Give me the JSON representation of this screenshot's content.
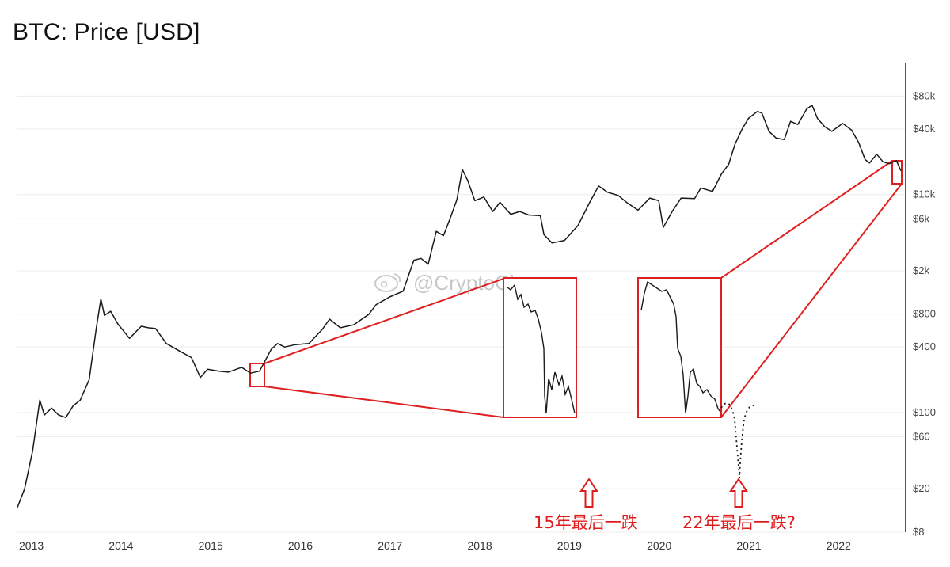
{
  "title": "BTC: Price [USD]",
  "watermark": "@CryptoChan",
  "chart_data": {
    "type": "line",
    "title": "BTC: Price [USD]",
    "y_scale": "log",
    "ylim": [
      8,
      160000
    ],
    "xlim": [
      2013.0,
      2022.85
    ],
    "grid": true,
    "y_ticks": [
      {
        "value": 80000,
        "label": "$80k"
      },
      {
        "value": 40000,
        "label": "$40k"
      },
      {
        "value": 10000,
        "label": "$10k"
      },
      {
        "value": 6000,
        "label": "$6k"
      },
      {
        "value": 2000,
        "label": "$2k"
      },
      {
        "value": 800,
        "label": "$800"
      },
      {
        "value": 400,
        "label": "$400"
      },
      {
        "value": 100,
        "label": "$100"
      },
      {
        "value": 60,
        "label": "$60"
      },
      {
        "value": 20,
        "label": "$20"
      },
      {
        "value": 8,
        "label": "$8"
      }
    ],
    "x_ticks": [
      "2013",
      "2014",
      "2015",
      "2016",
      "2017",
      "2018",
      "2019",
      "2020",
      "2021",
      "2022"
    ],
    "series": [
      {
        "color": "#1a1a1a",
        "points": [
          [
            2013.0,
            13.5
          ],
          [
            2013.08,
            20
          ],
          [
            2013.17,
            45
          ],
          [
            2013.25,
            130
          ],
          [
            2013.3,
            95
          ],
          [
            2013.38,
            110
          ],
          [
            2013.46,
            95
          ],
          [
            2013.54,
            90
          ],
          [
            2013.62,
            115
          ],
          [
            2013.7,
            130
          ],
          [
            2013.8,
            200
          ],
          [
            2013.88,
            600
          ],
          [
            2013.93,
            1100
          ],
          [
            2013.97,
            780
          ],
          [
            2014.04,
            850
          ],
          [
            2014.12,
            650
          ],
          [
            2014.25,
            480
          ],
          [
            2014.38,
            620
          ],
          [
            2014.46,
            600
          ],
          [
            2014.54,
            590
          ],
          [
            2014.66,
            430
          ],
          [
            2014.8,
            370
          ],
          [
            2014.94,
            320
          ],
          [
            2015.04,
            210
          ],
          [
            2015.12,
            250
          ],
          [
            2015.25,
            240
          ],
          [
            2015.35,
            235
          ],
          [
            2015.5,
            260
          ],
          [
            2015.6,
            230
          ],
          [
            2015.7,
            240
          ],
          [
            2015.83,
            380
          ],
          [
            2015.9,
            430
          ],
          [
            2015.98,
            400
          ],
          [
            2016.1,
            420
          ],
          [
            2016.25,
            430
          ],
          [
            2016.4,
            580
          ],
          [
            2016.48,
            720
          ],
          [
            2016.6,
            600
          ],
          [
            2016.75,
            640
          ],
          [
            2016.92,
            800
          ],
          [
            2017.0,
            980
          ],
          [
            2017.15,
            1150
          ],
          [
            2017.3,
            1300
          ],
          [
            2017.42,
            2500
          ],
          [
            2017.5,
            2600
          ],
          [
            2017.58,
            2300
          ],
          [
            2017.67,
            4600
          ],
          [
            2017.75,
            4200
          ],
          [
            2017.83,
            6200
          ],
          [
            2017.9,
            9000
          ],
          [
            2017.96,
            17000
          ],
          [
            2018.02,
            13500
          ],
          [
            2018.1,
            8800
          ],
          [
            2018.2,
            9500
          ],
          [
            2018.3,
            7000
          ],
          [
            2018.38,
            8500
          ],
          [
            2018.5,
            6600
          ],
          [
            2018.6,
            7000
          ],
          [
            2018.7,
            6500
          ],
          [
            2018.83,
            6400
          ],
          [
            2018.87,
            4300
          ],
          [
            2018.96,
            3600
          ],
          [
            2019.1,
            3800
          ],
          [
            2019.25,
            5200
          ],
          [
            2019.38,
            8500
          ],
          [
            2019.48,
            12000
          ],
          [
            2019.58,
            10500
          ],
          [
            2019.7,
            9800
          ],
          [
            2019.8,
            8400
          ],
          [
            2019.92,
            7200
          ],
          [
            2020.05,
            9300
          ],
          [
            2020.15,
            8800
          ],
          [
            2020.2,
            5000
          ],
          [
            2020.3,
            7000
          ],
          [
            2020.4,
            9300
          ],
          [
            2020.55,
            9200
          ],
          [
            2020.62,
            11500
          ],
          [
            2020.75,
            10700
          ],
          [
            2020.85,
            15500
          ],
          [
            2020.93,
            19000
          ],
          [
            2021.0,
            29000
          ],
          [
            2021.08,
            40000
          ],
          [
            2021.15,
            50000
          ],
          [
            2021.25,
            58000
          ],
          [
            2021.3,
            56000
          ],
          [
            2021.38,
            38000
          ],
          [
            2021.46,
            33000
          ],
          [
            2021.55,
            32000
          ],
          [
            2021.62,
            47000
          ],
          [
            2021.7,
            44000
          ],
          [
            2021.8,
            61000
          ],
          [
            2021.86,
            66000
          ],
          [
            2021.92,
            50000
          ],
          [
            2022.0,
            42000
          ],
          [
            2022.08,
            38000
          ],
          [
            2022.2,
            45000
          ],
          [
            2022.3,
            39000
          ],
          [
            2022.38,
            30000
          ],
          [
            2022.45,
            21000
          ],
          [
            2022.5,
            19500
          ],
          [
            2022.58,
            23500
          ],
          [
            2022.65,
            20000
          ],
          [
            2022.72,
            19200
          ],
          [
            2022.8,
            20500
          ],
          [
            2022.85,
            16500
          ]
        ]
      }
    ],
    "annotations": [
      "15年最后一跌",
      "22年最后一跌?"
    ]
  }
}
